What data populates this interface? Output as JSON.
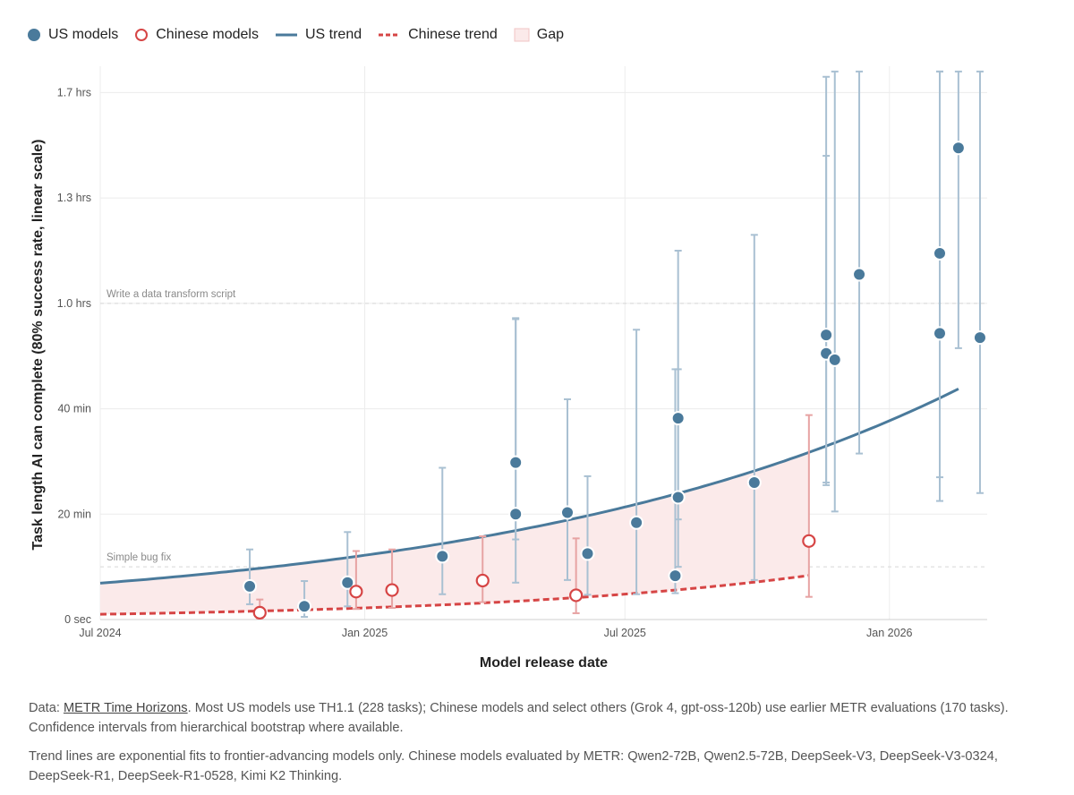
{
  "legend": {
    "us_models": "US models",
    "chinese_models": "Chinese models",
    "us_trend": "US trend",
    "chinese_trend": "Chinese trend",
    "gap": "Gap"
  },
  "colors": {
    "us": "#4a7a9b",
    "us_whisker": "#a9c0d2",
    "chinese": "#d64545",
    "chinese_whisker": "#e7a3a3",
    "gap_fill": "#fbeaea",
    "grid": "#ececec",
    "reference_line": "#d8d8d8"
  },
  "chart_data": {
    "type": "scatter",
    "xlabel": "Model release date",
    "ylabel": "Task length AI can complete (80% success rate, linear scale)",
    "x_axis": {
      "range": [
        "2024-07-01",
        "2026-03-10"
      ],
      "ticks": [
        {
          "date": "2024-07-01",
          "label": "Jul 2024"
        },
        {
          "date": "2025-01-01",
          "label": "Jan 2025"
        },
        {
          "date": "2025-07-01",
          "label": "Jul 2025"
        },
        {
          "date": "2026-01-01",
          "label": "Jan 2026"
        }
      ]
    },
    "y_axis": {
      "unit": "minutes",
      "range": [
        0,
        105
      ],
      "ticks": [
        {
          "value": 0,
          "label": "0 sec"
        },
        {
          "value": 20,
          "label": "20 min"
        },
        {
          "value": 40,
          "label": "40 min"
        },
        {
          "value": 60,
          "label": "1.0 hrs"
        },
        {
          "value": 80,
          "label": "1.3 hrs"
        },
        {
          "value": 100,
          "label": "1.7 hrs"
        }
      ]
    },
    "grid": true,
    "legend_position": "top-left",
    "reference_lines": [
      {
        "value": 10,
        "label": "Simple bug fix"
      },
      {
        "value": 60,
        "label": "Write a data transform script"
      }
    ],
    "series": [
      {
        "name": "US models",
        "points": [
          {
            "date": "2024-10-13",
            "y": 6.3,
            "lo": 2.9,
            "hi": 13.3
          },
          {
            "date": "2024-11-20",
            "y": 2.5,
            "lo": 0.5,
            "hi": 7.3
          },
          {
            "date": "2024-12-20",
            "y": 7.0,
            "lo": 2.5,
            "hi": 16.6
          },
          {
            "date": "2025-02-24",
            "y": 12.0,
            "lo": 4.8,
            "hi": 28.8
          },
          {
            "date": "2025-04-16",
            "y": 29.8,
            "lo": 15.2,
            "hi": 57.2
          },
          {
            "date": "2025-04-16",
            "y": 20.0,
            "lo": 7.0,
            "hi": 57.0
          },
          {
            "date": "2025-05-22",
            "y": 20.3,
            "lo": 7.5,
            "hi": 41.8
          },
          {
            "date": "2025-06-05",
            "y": 12.5,
            "lo": 4.7,
            "hi": 27.2
          },
          {
            "date": "2025-07-09",
            "y": 18.4,
            "lo": 4.8,
            "hi": 55.0
          },
          {
            "date": "2025-08-05",
            "y": 8.3,
            "lo": 5.0,
            "hi": 47.5
          },
          {
            "date": "2025-08-07",
            "y": 23.2,
            "lo": 10.0,
            "hi": 47.5
          },
          {
            "date": "2025-08-07",
            "y": 38.2,
            "lo": 19.0,
            "hi": 70.0
          },
          {
            "date": "2025-09-29",
            "y": 26.0,
            "lo": 7.5,
            "hi": 73.0
          },
          {
            "date": "2025-11-18",
            "y": 54.0,
            "lo": 26.0,
            "hi": 103.0
          },
          {
            "date": "2025-11-18",
            "y": 50.5,
            "lo": 25.5,
            "hi": 88.0
          },
          {
            "date": "2025-11-24",
            "y": 49.3,
            "lo": 20.5,
            "hi": 104.0
          },
          {
            "date": "2025-12-11",
            "y": 65.5,
            "lo": 31.5,
            "hi": 104.0
          },
          {
            "date": "2026-02-05",
            "y": 69.5,
            "lo": 22.5,
            "hi": 104.0
          },
          {
            "date": "2026-02-05",
            "y": 54.3,
            "lo": 27.0,
            "hi": 104.0
          },
          {
            "date": "2026-02-18",
            "y": 89.5,
            "lo": 51.5,
            "hi": 104.0
          },
          {
            "date": "2026-03-05",
            "y": 53.5,
            "lo": 24.0,
            "hi": 104.0
          }
        ]
      },
      {
        "name": "Chinese models",
        "points": [
          {
            "date": "2024-10-20",
            "y": 1.3,
            "lo": 0.2,
            "hi": 3.8
          },
          {
            "date": "2024-12-26",
            "y": 5.3,
            "lo": 2.0,
            "hi": 13.0
          },
          {
            "date": "2025-01-20",
            "y": 5.6,
            "lo": 2.2,
            "hi": 13.3
          },
          {
            "date": "2025-03-24",
            "y": 7.4,
            "lo": 3.3,
            "hi": 15.8
          },
          {
            "date": "2025-05-28",
            "y": 4.6,
            "lo": 1.2,
            "hi": 15.4
          },
          {
            "date": "2025-11-06",
            "y": 14.9,
            "lo": 4.3,
            "hi": 38.8
          }
        ]
      }
    ],
    "trends": [
      {
        "name": "US trend",
        "from": "2024-07-01",
        "to": "2026-02-18",
        "y_start": 6.9,
        "doubling_days": 224
      },
      {
        "name": "Chinese trend",
        "from": "2024-07-01",
        "to": "2025-11-06",
        "y_start": 1.0,
        "doubling_days": 161
      }
    ]
  },
  "notes": {
    "data_prefix": "Data: ",
    "data_link": "METR Time Horizons",
    "data_rest": ". Most US models use TH1.1 (228 tasks); Chinese models and select others (Grok 4, gpt-oss-120b) use earlier METR evaluations (170 tasks). Confidence intervals from hierarchical bootstrap where available.",
    "trend_note": "Trend lines are exponential fits to frontier-advancing models only. Chinese models evaluated by METR: Qwen2-72B, Qwen2.5-72B, DeepSeek-V3, DeepSeek-V3-0324, DeepSeek-R1, DeepSeek-R1-0528, Kimi K2 Thinking."
  }
}
